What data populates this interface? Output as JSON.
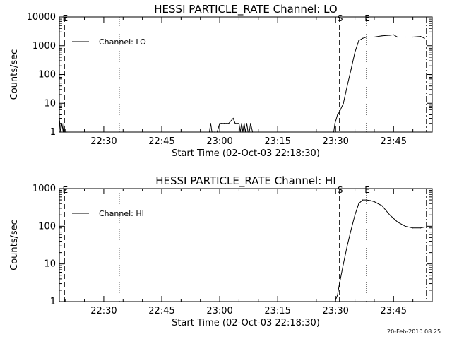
{
  "footer": "20-Feb-2010 08:25",
  "chart_data": [
    {
      "type": "line",
      "title": "HESSI PARTICLE_RATE Channel: LO",
      "xlabel": "Start Time (02-Oct-03 22:18:30)",
      "ylabel": "Counts/sec",
      "yscale": "log",
      "xlim": [
        "22:18:30",
        "23:55:00"
      ],
      "ylim": [
        1,
        10000
      ],
      "xticks": [
        "22:30",
        "22:45",
        "23:00",
        "23:15",
        "23:30",
        "23:45"
      ],
      "yticks": [
        "1",
        "10",
        "100",
        "1000",
        "10000"
      ],
      "grid": false,
      "legend": "top-left",
      "series": [
        {
          "name": "Channel: LO",
          "x": [
            "22:18:30",
            "22:18:50",
            "22:19:10",
            "22:19:30",
            "22:19:40",
            "22:19:50",
            "22:20:00",
            "22:20:10",
            "22:20:30",
            "22:57:20",
            "22:57:40",
            "22:58:00",
            "22:58:40",
            "22:59:20",
            "23:00:00",
            "23:00:30",
            "23:01:10",
            "23:01:50",
            "23:02:20",
            "23:03:30",
            "23:04:00",
            "23:04:30",
            "23:05:00",
            "23:05:20",
            "23:05:40",
            "23:06:00",
            "23:06:20",
            "23:06:40",
            "23:07:00",
            "23:07:20",
            "23:07:40",
            "23:08:00",
            "23:08:30",
            "23:29:30",
            "23:29:50",
            "23:30:30",
            "23:31:00",
            "23:32:00",
            "23:33:00",
            "23:34:00",
            "23:35:00",
            "23:36:00",
            "23:37:00",
            "23:38:00",
            "23:40:00",
            "23:42:00",
            "23:44:00",
            "23:45:00",
            "23:46:00",
            "23:48:00",
            "23:50:00",
            "23:52:00",
            "23:53:00"
          ],
          "y": [
            3,
            1,
            2,
            1,
            2,
            1,
            1,
            1,
            1,
            1,
            2,
            1,
            1,
            1,
            2,
            2,
            2,
            2,
            2,
            3,
            2,
            2,
            2,
            1,
            2,
            1,
            2,
            1,
            2,
            1,
            1,
            2,
            1,
            1,
            2,
            4,
            5,
            10,
            40,
            150,
            600,
            1500,
            1800,
            2000,
            2000,
            2200,
            2300,
            2400,
            2000,
            2000,
            2000,
            2100,
            1800
          ]
        }
      ],
      "markers": [
        {
          "time": "22:19:50",
          "style": "dashed",
          "label": "E"
        },
        {
          "time": "22:34:00",
          "style": "dotted",
          "label": ""
        },
        {
          "time": "23:31:00",
          "style": "dashed",
          "label": "S"
        },
        {
          "time": "23:38:00",
          "style": "dotted",
          "label": "E"
        },
        {
          "time": "23:53:30",
          "style": "dash-dot",
          "label": ""
        }
      ]
    },
    {
      "type": "line",
      "title": "HESSI PARTICLE_RATE Channel: HI",
      "xlabel": "Start Time (02-Oct-03 22:18:30)",
      "ylabel": "Counts/sec",
      "yscale": "log",
      "xlim": [
        "22:18:30",
        "23:55:00"
      ],
      "ylim": [
        1,
        1000
      ],
      "xticks": [
        "22:30",
        "22:45",
        "23:00",
        "23:15",
        "23:30",
        "23:45"
      ],
      "yticks": [
        "1",
        "10",
        "100",
        "1000"
      ],
      "grid": false,
      "legend": "top-left",
      "series": [
        {
          "name": "Channel: HI",
          "x": [
            "23:29:50",
            "23:30:30",
            "23:31:00",
            "23:32:00",
            "23:33:00",
            "23:34:00",
            "23:35:00",
            "23:36:00",
            "23:37:00",
            "23:38:00",
            "23:39:00",
            "23:40:00",
            "23:42:00",
            "23:44:00",
            "23:46:00",
            "23:48:00",
            "23:50:00",
            "23:52:00",
            "23:53:00"
          ],
          "y": [
            1,
            1.5,
            3,
            10,
            30,
            80,
            200,
            400,
            500,
            500,
            480,
            450,
            350,
            200,
            130,
            100,
            90,
            90,
            95
          ]
        }
      ],
      "markers": [
        {
          "time": "22:19:50",
          "style": "dashed",
          "label": "E"
        },
        {
          "time": "22:34:00",
          "style": "dotted",
          "label": ""
        },
        {
          "time": "23:31:00",
          "style": "dashed",
          "label": "S"
        },
        {
          "time": "23:38:00",
          "style": "dotted",
          "label": "E"
        },
        {
          "time": "23:53:30",
          "style": "dash-dot",
          "label": ""
        }
      ]
    }
  ]
}
